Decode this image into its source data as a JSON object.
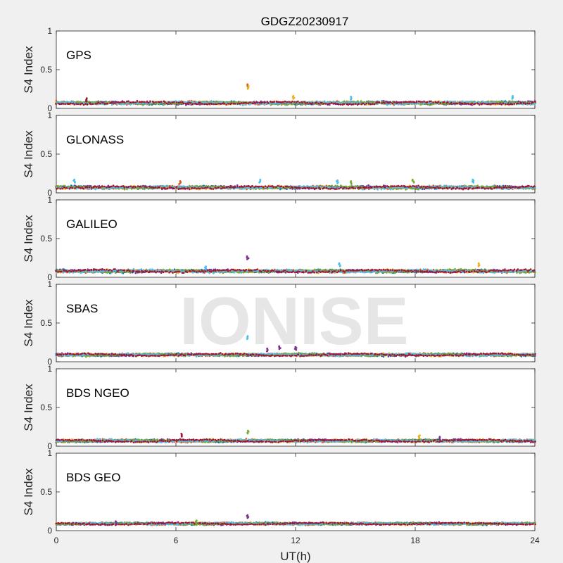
{
  "chart_data": {
    "type": "scatter",
    "title": "GDGZ20230917",
    "xlabel": "UT(h)",
    "ylabel": "S4 Index",
    "xlim": [
      0,
      24
    ],
    "ylim": [
      0,
      1
    ],
    "xticks": [
      "0",
      "6",
      "12",
      "18",
      "24"
    ],
    "yticks": [
      "0",
      "0.5",
      "1"
    ],
    "watermark": "IONISE",
    "series_colors": [
      "#0072BD",
      "#D95319",
      "#EDB120",
      "#7E2F8E",
      "#77AC30",
      "#4DBEEE",
      "#A2142F"
    ],
    "panels": [
      {
        "label": "GPS",
        "baseline": 0.07,
        "spread": 0.04,
        "features": [
          {
            "x": 9.6,
            "y": 0.31,
            "color": "#D95319"
          },
          {
            "x": 9.6,
            "y": 0.29,
            "color": "#EDB120"
          },
          {
            "x": 11.9,
            "y": 0.16,
            "color": "#EDB120"
          },
          {
            "x": 14.8,
            "y": 0.15,
            "color": "#4DBEEE"
          },
          {
            "x": 22.9,
            "y": 0.16,
            "color": "#4DBEEE"
          },
          {
            "x": 1.5,
            "y": 0.13,
            "color": "#A2142F"
          }
        ]
      },
      {
        "label": "GLONASS",
        "baseline": 0.07,
        "spread": 0.04,
        "features": [
          {
            "x": 0.9,
            "y": 0.17,
            "color": "#4DBEEE"
          },
          {
            "x": 6.2,
            "y": 0.15,
            "color": "#D95319"
          },
          {
            "x": 10.2,
            "y": 0.17,
            "color": "#4DBEEE"
          },
          {
            "x": 14.1,
            "y": 0.16,
            "color": "#4DBEEE"
          },
          {
            "x": 14.8,
            "y": 0.15,
            "color": "#77AC30"
          },
          {
            "x": 17.9,
            "y": 0.17,
            "color": "#77AC30"
          },
          {
            "x": 20.9,
            "y": 0.17,
            "color": "#4DBEEE"
          }
        ]
      },
      {
        "label": "GALILEO",
        "baseline": 0.08,
        "spread": 0.04,
        "features": [
          {
            "x": 9.6,
            "y": 0.27,
            "color": "#7E2F8E"
          },
          {
            "x": 14.2,
            "y": 0.18,
            "color": "#4DBEEE"
          },
          {
            "x": 21.2,
            "y": 0.18,
            "color": "#EDB120"
          },
          {
            "x": 7.5,
            "y": 0.14,
            "color": "#4DBEEE"
          }
        ]
      },
      {
        "label": "SBAS",
        "baseline": 0.09,
        "spread": 0.035,
        "features": [
          {
            "x": 9.6,
            "y": 0.33,
            "color": "#4DBEEE"
          },
          {
            "x": 11.2,
            "y": 0.2,
            "color": "#7E2F8E"
          },
          {
            "x": 12.0,
            "y": 0.19,
            "color": "#7E2F8E"
          },
          {
            "x": 10.6,
            "y": 0.17,
            "color": "#7E2F8E"
          }
        ]
      },
      {
        "label": "BDS NGEO",
        "baseline": 0.07,
        "spread": 0.035,
        "features": [
          {
            "x": 9.6,
            "y": 0.2,
            "color": "#77AC30"
          },
          {
            "x": 6.3,
            "y": 0.16,
            "color": "#A2142F"
          },
          {
            "x": 18.2,
            "y": 0.14,
            "color": "#EDB120"
          },
          {
            "x": 19.2,
            "y": 0.12,
            "color": "#7E2F8E"
          }
        ]
      },
      {
        "label": "BDS GEO",
        "baseline": 0.09,
        "spread": 0.03,
        "features": [
          {
            "x": 9.6,
            "y": 0.2,
            "color": "#7E2F8E"
          },
          {
            "x": 7.0,
            "y": 0.13,
            "color": "#77AC30"
          },
          {
            "x": 3.0,
            "y": 0.12,
            "color": "#7E2F8E"
          }
        ]
      }
    ]
  }
}
